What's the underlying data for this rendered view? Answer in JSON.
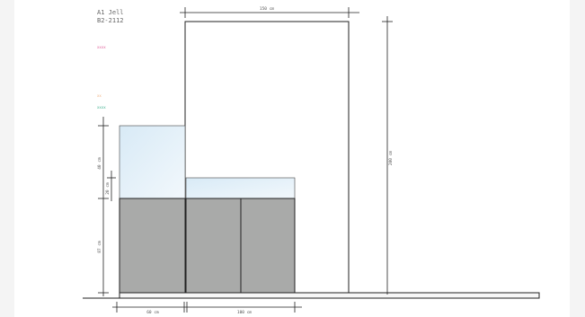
{
  "header": {
    "line1": "A1  Jell",
    "line2": "B2-2112"
  },
  "legend": [
    {
      "label": "xxxx",
      "color": "#e0609a"
    },
    {
      "label": "xx",
      "color": "#f0b080"
    },
    {
      "label": "xxxx",
      "color": "#40b090"
    }
  ],
  "dimensions": {
    "top_width": "150 cm",
    "total_height": "200 cm",
    "upper_cabinet_height": "40 cm",
    "glass_height": "20 cm",
    "base_height": "87 cm",
    "bottom_left": "60 cm",
    "bottom_right": "100 cm"
  },
  "colors": {
    "base_cabinet": "#a9aaa9",
    "glass_top": "#e4f0f8",
    "line": "#222222",
    "background": "#f4f4f4",
    "panel": "#ffffff"
  }
}
